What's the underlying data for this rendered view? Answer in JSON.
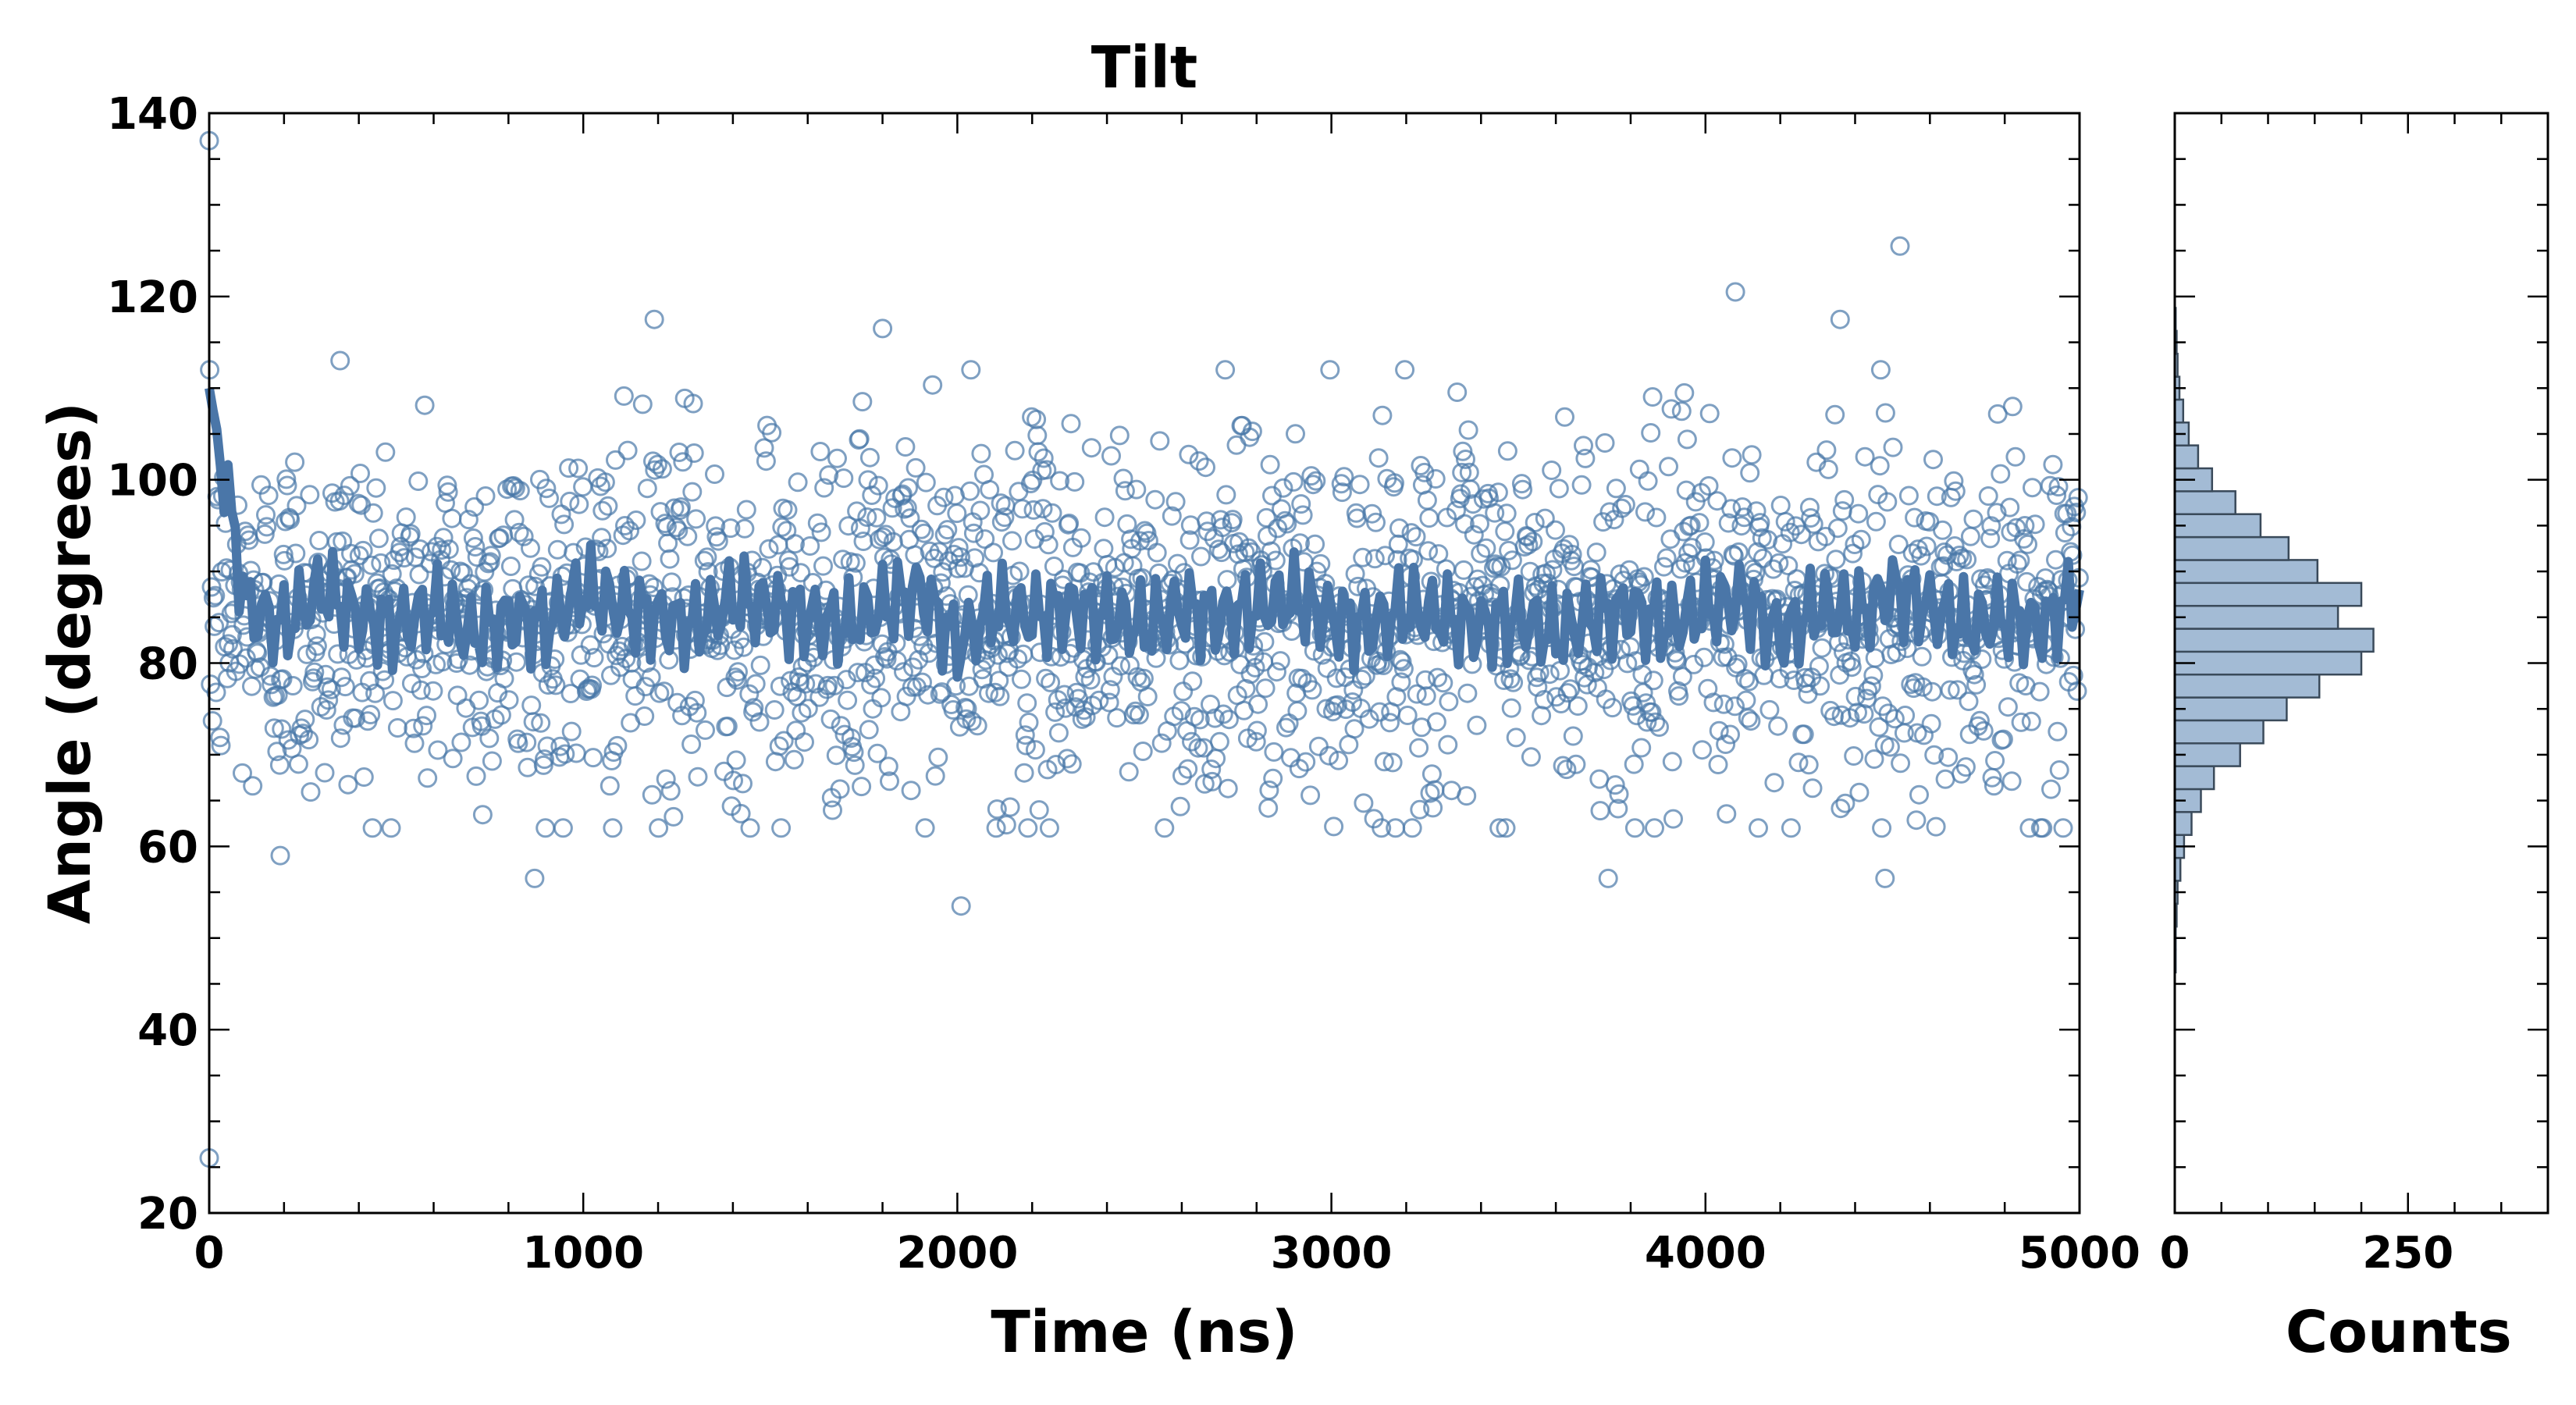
{
  "chart_data": [
    {
      "type": "scatter",
      "title": "Tilt",
      "xlabel": "Time (ns)",
      "ylabel": "Angle (degrees)",
      "xlim": [
        0,
        5000
      ],
      "ylim": [
        20,
        140
      ],
      "xticks": [
        "0",
        "1000",
        "2000",
        "3000",
        "4000",
        "5000"
      ],
      "yticks": [
        "20",
        "40",
        "60",
        "80",
        "100",
        "120",
        "140"
      ],
      "grid": false,
      "colors": {
        "points": "#4878a8",
        "line": "#4a76a8"
      },
      "series": [
        {
          "kind": "scatter-open-circles",
          "approx_mean": 85,
          "approx_std": 10,
          "n_points": 2000,
          "notable_points": [
            {
              "x": 0,
              "y": 137
            },
            {
              "x": 0,
              "y": 26
            },
            {
              "x": 1190,
              "y": 117.5
            },
            {
              "x": 1800,
              "y": 116.5
            },
            {
              "x": 2010,
              "y": 53.5
            },
            {
              "x": 4080,
              "y": 120.5
            },
            {
              "x": 4360,
              "y": 117.5
            },
            {
              "x": 4520,
              "y": 125.5
            },
            {
              "x": 3740,
              "y": 56.5
            },
            {
              "x": 4480,
              "y": 56.5
            },
            {
              "x": 870,
              "y": 56.5
            },
            {
              "x": 190,
              "y": 59
            },
            {
              "x": 350,
              "y": 113
            }
          ]
        },
        {
          "kind": "running-average-line",
          "x": [
            0,
            100,
            200,
            300,
            400,
            500,
            600,
            700,
            800,
            900,
            1000,
            1100,
            1200,
            1300,
            1400,
            1500,
            1600,
            1700,
            1800,
            1900,
            2000,
            2100,
            2200,
            2300,
            2400,
            2500,
            2600,
            2700,
            2800,
            2900,
            3000,
            3100,
            3200,
            3300,
            3400,
            3500,
            3600,
            3700,
            3800,
            3900,
            4000,
            4100,
            4200,
            4300,
            4400,
            4500,
            4600,
            4700,
            4800,
            4900,
            5000
          ],
          "y": [
            110,
            86,
            84,
            88,
            85,
            84,
            86,
            83,
            85,
            84,
            88,
            86,
            85,
            84,
            87,
            86,
            85,
            84,
            86,
            88,
            82,
            86,
            85,
            86,
            85,
            84,
            86,
            85,
            86,
            87,
            85,
            84,
            86,
            85,
            84,
            85,
            83,
            85,
            86,
            84,
            86,
            87,
            83,
            86,
            85,
            88,
            86,
            84,
            85,
            84,
            88
          ]
        }
      ]
    },
    {
      "type": "bar",
      "orientation": "horizontal",
      "xlabel": "Counts",
      "xlim": [
        0,
        400
      ],
      "xticks": [
        "0",
        "250"
      ],
      "ylim": [
        20,
        140
      ],
      "bin_width": 2.5,
      "colors": {
        "fill": "#a3bbd5",
        "edge": "#3a4a5a"
      },
      "bins": [
        {
          "y": 47.5,
          "count": 1
        },
        {
          "y": 50,
          "count": 1
        },
        {
          "y": 52.5,
          "count": 2
        },
        {
          "y": 55,
          "count": 3
        },
        {
          "y": 57.5,
          "count": 6
        },
        {
          "y": 60,
          "count": 10
        },
        {
          "y": 62.5,
          "count": 18
        },
        {
          "y": 65,
          "count": 28
        },
        {
          "y": 67.5,
          "count": 42
        },
        {
          "y": 70,
          "count": 70
        },
        {
          "y": 72.5,
          "count": 95
        },
        {
          "y": 75,
          "count": 120
        },
        {
          "y": 77.5,
          "count": 155
        },
        {
          "y": 80,
          "count": 200
        },
        {
          "y": 82.5,
          "count": 213
        },
        {
          "y": 85,
          "count": 175
        },
        {
          "y": 87.5,
          "count": 200
        },
        {
          "y": 90,
          "count": 153
        },
        {
          "y": 92.5,
          "count": 122
        },
        {
          "y": 95,
          "count": 92
        },
        {
          "y": 97.5,
          "count": 65
        },
        {
          "y": 100,
          "count": 40
        },
        {
          "y": 102.5,
          "count": 25
        },
        {
          "y": 105,
          "count": 15
        },
        {
          "y": 107.5,
          "count": 9
        },
        {
          "y": 110,
          "count": 5
        },
        {
          "y": 112.5,
          "count": 3
        },
        {
          "y": 115,
          "count": 2
        },
        {
          "y": 117.5,
          "count": 1
        }
      ]
    }
  ]
}
